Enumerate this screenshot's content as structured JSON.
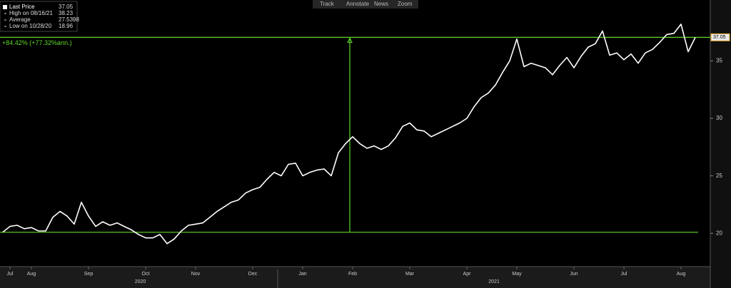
{
  "toolbar": [
    "Track",
    "Annotate",
    "News",
    "Zoom"
  ],
  "chart_data": {
    "type": "line",
    "series": [
      {
        "name": "Last Price",
        "color": "#ffffff",
        "values": [
          20.1,
          20.6,
          20.7,
          20.4,
          20.5,
          20.2,
          20.2,
          21.4,
          21.9,
          21.5,
          20.8,
          22.7,
          21.5,
          20.6,
          21.0,
          20.7,
          20.9,
          20.6,
          20.3,
          19.9,
          19.6,
          19.6,
          19.9,
          19.1,
          19.5,
          20.2,
          20.7,
          20.8,
          20.9,
          21.4,
          21.9,
          22.3,
          22.7,
          22.9,
          23.5,
          23.8,
          24.0,
          24.7,
          25.3,
          25.0,
          26.0,
          26.1,
          25.0,
          25.3,
          25.5,
          25.6,
          25.0,
          27.0,
          27.8,
          28.4,
          27.8,
          27.4,
          27.6,
          27.3,
          27.6,
          28.3,
          29.3,
          29.6,
          29.0,
          28.9,
          28.4,
          28.7,
          29.0,
          29.3,
          29.6,
          30.0,
          31.0,
          31.8,
          32.2,
          32.9,
          34.0,
          35.0,
          36.9,
          34.5,
          34.8,
          34.6,
          34.4,
          33.8,
          34.6,
          35.3,
          34.4,
          35.4,
          36.2,
          36.5,
          37.6,
          35.5,
          35.7,
          35.1,
          35.6,
          34.8,
          35.7,
          36.0,
          36.6,
          37.3,
          37.4,
          38.2,
          35.8,
          37.05
        ]
      }
    ],
    "categories": [
      null,
      "Jul",
      null,
      null,
      "Aug",
      null,
      null,
      null,
      null,
      null,
      null,
      null,
      "Sep",
      null,
      null,
      null,
      null,
      null,
      null,
      null,
      "Oct",
      null,
      null,
      null,
      null,
      null,
      null,
      "Nov",
      null,
      null,
      null,
      null,
      null,
      null,
      null,
      "Dec",
      null,
      null,
      null,
      null,
      null,
      null,
      "Jan",
      null,
      null,
      null,
      null,
      null,
      null,
      "Feb",
      null,
      null,
      null,
      null,
      null,
      null,
      null,
      "Mar",
      null,
      null,
      null,
      null,
      null,
      null,
      null,
      "Apr",
      null,
      null,
      null,
      null,
      null,
      null,
      "May",
      null,
      null,
      null,
      null,
      null,
      null,
      null,
      "Jun",
      null,
      null,
      null,
      null,
      null,
      null,
      "Jul",
      null,
      null,
      null,
      null,
      null,
      null,
      null,
      "Aug",
      null,
      null
    ],
    "year_labels": [
      "2020",
      "2021"
    ],
    "stats": [
      {
        "label": "High on 08/16/21",
        "value": 38.23
      },
      {
        "label": "Average",
        "value": 27.5398
      },
      {
        "label": "Low on 10/28/20",
        "value": 18.96
      }
    ],
    "measure": {
      "from": 20.09,
      "to": 37.05,
      "label": "+84.42% (+77.32%ann.)",
      "color": "#5fd82a"
    },
    "ylim": [
      17.1,
      40.3
    ],
    "yticks": [
      20,
      25,
      30,
      35
    ]
  }
}
